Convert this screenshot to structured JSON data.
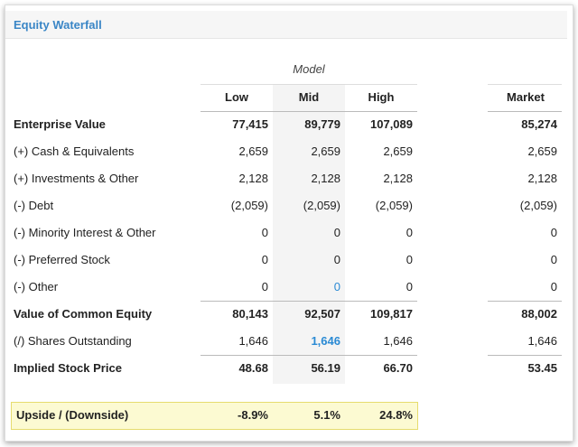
{
  "header": {
    "title": "Equity Waterfall"
  },
  "table": {
    "group_label": "Model",
    "columns": [
      "Low",
      "Mid",
      "High",
      "Market"
    ],
    "rows": [
      {
        "label": "Enterprise Value",
        "values": [
          "77,415",
          "89,779",
          "107,089",
          "85,274"
        ]
      },
      {
        "label": "(+) Cash & Equivalents",
        "values": [
          "2,659",
          "2,659",
          "2,659",
          "2,659"
        ]
      },
      {
        "label": "(+) Investments & Other",
        "values": [
          "2,128",
          "2,128",
          "2,128",
          "2,128"
        ]
      },
      {
        "label": "(-) Debt",
        "values": [
          "(2,059)",
          "(2,059)",
          "(2,059)",
          "(2,059)"
        ]
      },
      {
        "label": "(-) Minority Interest & Other",
        "values": [
          "0",
          "0",
          "0",
          "0"
        ]
      },
      {
        "label": "(-) Preferred Stock",
        "values": [
          "0",
          "0",
          "0",
          "0"
        ]
      },
      {
        "label": "(-) Other",
        "values": [
          "0",
          "0",
          "0",
          "0"
        ]
      },
      {
        "label": "Value of Common Equity",
        "values": [
          "80,143",
          "92,507",
          "109,817",
          "88,002"
        ]
      },
      {
        "label": "(/) Shares Outstanding",
        "values": [
          "1,646",
          "1,646",
          "1,646",
          "1,646"
        ]
      },
      {
        "label": "Implied Stock Price",
        "values": [
          "48.68",
          "56.19",
          "66.70",
          "53.45"
        ]
      }
    ],
    "upside": {
      "label": "Upside / (Downside)",
      "values": [
        "-8.9%",
        "5.1%",
        "24.8%"
      ]
    }
  }
}
